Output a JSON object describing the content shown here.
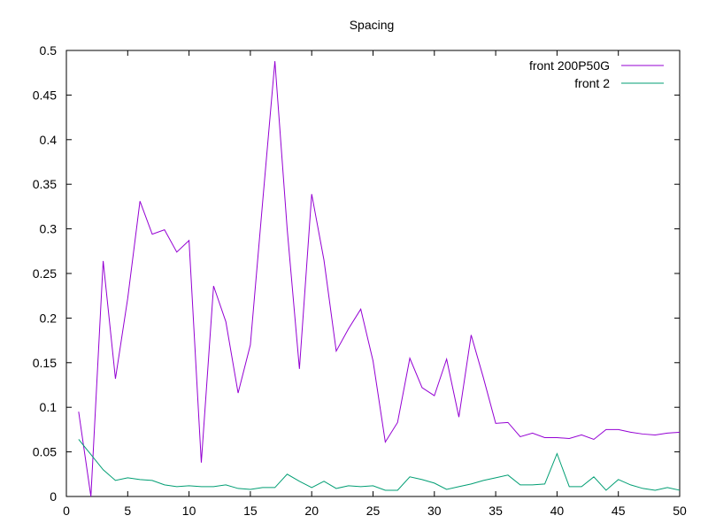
{
  "chart_data": {
    "type": "line",
    "title": "Spacing",
    "xlabel": "",
    "ylabel": "",
    "xlim": [
      0,
      50
    ],
    "ylim": [
      0,
      0.5
    ],
    "xticks": [
      0,
      5,
      10,
      15,
      20,
      25,
      30,
      35,
      40,
      45,
      50
    ],
    "yticks": [
      0,
      0.05,
      0.1,
      0.15,
      0.2,
      0.25,
      0.3,
      0.35,
      0.4,
      0.45,
      0.5
    ],
    "grid": false,
    "legend_position": "top-right",
    "series": [
      {
        "name": "front 200P50G",
        "color": "#9400d3",
        "x": [
          1,
          2,
          3,
          4,
          5,
          6,
          7,
          8,
          9,
          10,
          11,
          12,
          13,
          14,
          15,
          16,
          17,
          18,
          19,
          20,
          21,
          22,
          23,
          24,
          25,
          26,
          27,
          28,
          29,
          30,
          31,
          32,
          33,
          34,
          35,
          36,
          37,
          38,
          39,
          40,
          41,
          42,
          43,
          44,
          45,
          46,
          47,
          48,
          49,
          50
        ],
        "y": [
          0.095,
          0.0,
          0.264,
          0.132,
          0.222,
          0.331,
          0.294,
          0.299,
          0.274,
          0.287,
          0.038,
          0.236,
          0.196,
          0.116,
          0.17,
          0.33,
          0.488,
          0.3,
          0.143,
          0.339,
          0.265,
          0.163,
          0.188,
          0.21,
          0.152,
          0.061,
          0.083,
          0.155,
          0.122,
          0.113,
          0.154,
          0.089,
          0.181,
          0.133,
          0.082,
          0.083,
          0.067,
          0.071,
          0.066,
          0.066,
          0.065,
          0.069,
          0.064,
          0.075,
          0.075,
          0.072,
          0.07,
          0.069,
          0.071,
          0.072
        ]
      },
      {
        "name": "front 2",
        "color": "#009e73",
        "x": [
          1,
          2,
          3,
          4,
          5,
          6,
          7,
          8,
          9,
          10,
          11,
          12,
          13,
          14,
          15,
          16,
          17,
          18,
          19,
          20,
          21,
          22,
          23,
          24,
          25,
          26,
          27,
          28,
          29,
          30,
          31,
          32,
          33,
          34,
          35,
          36,
          37,
          38,
          39,
          40,
          41,
          42,
          43,
          44,
          45,
          46,
          47,
          48,
          49,
          50
        ],
        "y": [
          0.064,
          0.047,
          0.03,
          0.018,
          0.021,
          0.019,
          0.018,
          0.013,
          0.011,
          0.012,
          0.011,
          0.011,
          0.013,
          0.009,
          0.008,
          0.01,
          0.01,
          0.025,
          0.017,
          0.01,
          0.017,
          0.009,
          0.012,
          0.011,
          0.012,
          0.007,
          0.007,
          0.022,
          0.019,
          0.015,
          0.008,
          0.011,
          0.014,
          0.018,
          0.021,
          0.024,
          0.013,
          0.013,
          0.014,
          0.048,
          0.011,
          0.011,
          0.022,
          0.007,
          0.019,
          0.013,
          0.009,
          0.007,
          0.01,
          0.007
        ]
      }
    ]
  }
}
